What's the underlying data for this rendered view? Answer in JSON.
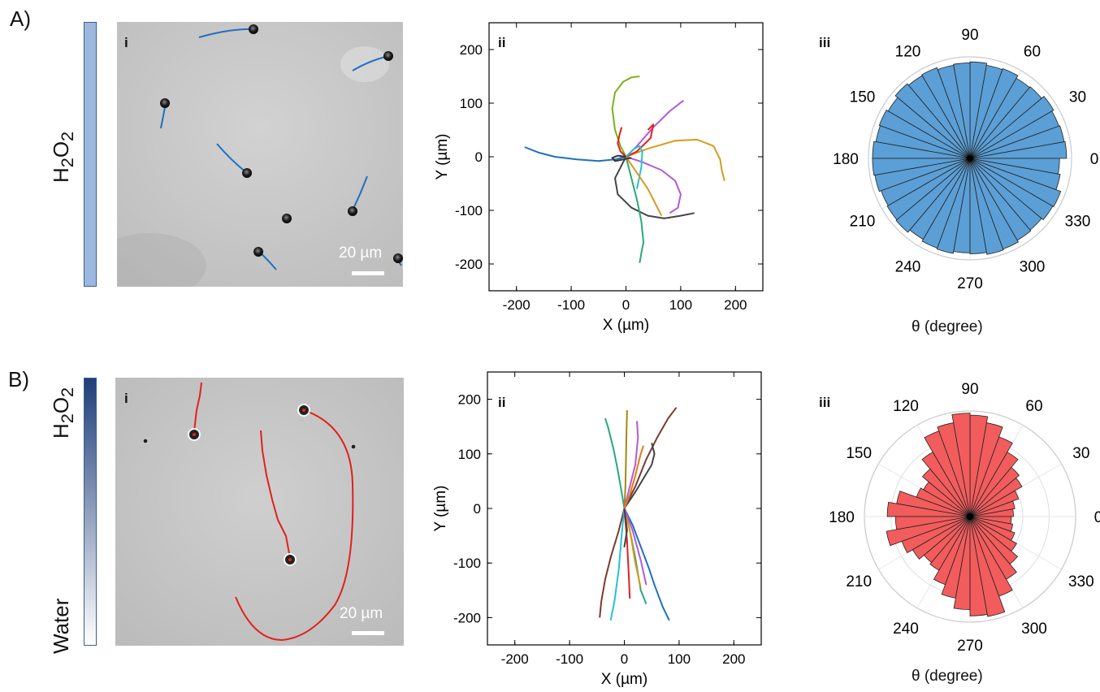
{
  "row_a": {
    "label": "A)",
    "side_label_html": "H<sub>2</sub>O<sub>2</sub>",
    "micro_tag": "i",
    "scale_text": "20 µm",
    "traj_tag": "ii",
    "polar_tag": "iii",
    "polar_xlabel": "θ (degree)",
    "colors": {
      "bar_fill": "#9db8de",
      "polar_fill": "#5b9fd6",
      "track": "#1f6fc0"
    }
  },
  "row_b": {
    "label": "B)",
    "side_label_top_html": "H<sub>2</sub>O<sub>2</sub>",
    "side_label_bottom": "Water",
    "micro_tag": "i",
    "scale_text": "20 µm",
    "traj_tag": "ii",
    "polar_tag": "iii",
    "polar_xlabel": "θ (degree)",
    "colors": {
      "bar_top": "#1f3f7a",
      "bar_bottom": "#ffffff",
      "polar_fill": "#f25c5c",
      "track": "#e3201b"
    }
  },
  "chart_data": [
    {
      "type": "line",
      "panel": "A-ii",
      "title": "",
      "xlabel": "X (µm)",
      "ylabel": "Y (µm)",
      "xlim": [
        -250,
        250
      ],
      "ylim": [
        -250,
        250
      ],
      "x_ticks": [
        -200,
        -100,
        0,
        100,
        200
      ],
      "y_ticks": [
        -200,
        -100,
        0,
        100,
        200
      ],
      "grid": false,
      "series": [
        {
          "color": "#1f6fc0",
          "x": [
            0,
            -20,
            -50,
            -90,
            -130,
            -160,
            -185
          ],
          "y": [
            0,
            -5,
            -8,
            -5,
            0,
            8,
            18
          ]
        },
        {
          "color": "#7ab317",
          "x": [
            0,
            -10,
            -20,
            -25,
            -20,
            -5,
            10,
            25
          ],
          "y": [
            0,
            20,
            50,
            90,
            120,
            140,
            148,
            150
          ]
        },
        {
          "color": "#b25bd6",
          "x": [
            0,
            20,
            50,
            80,
            105
          ],
          "y": [
            0,
            20,
            55,
            85,
            105
          ]
        },
        {
          "color": "#d89a1c",
          "x": [
            0,
            40,
            90,
            130,
            160,
            172,
            175,
            180
          ],
          "y": [
            0,
            15,
            30,
            32,
            20,
            -5,
            -25,
            -45
          ]
        },
        {
          "color": "#b25bd6",
          "x": [
            0,
            30,
            65,
            90,
            100,
            95,
            80
          ],
          "y": [
            0,
            -10,
            -25,
            -45,
            -70,
            -95,
            -105
          ]
        },
        {
          "color": "#444444",
          "x": [
            0,
            -20,
            -15,
            10,
            40,
            70,
            100,
            125
          ],
          "y": [
            0,
            -40,
            -70,
            -95,
            -110,
            -115,
            -110,
            -105
          ]
        },
        {
          "color": "#2aa878",
          "x": [
            0,
            10,
            20,
            28,
            32,
            28,
            25
          ],
          "y": [
            0,
            -40,
            -80,
            -120,
            -160,
            -180,
            -198
          ]
        },
        {
          "color": "#e3201b",
          "x": [
            0,
            20,
            45,
            50,
            40
          ],
          "y": [
            0,
            10,
            35,
            60,
            50
          ]
        },
        {
          "color": "#e3201b",
          "x": [
            0,
            -10,
            -15,
            -12,
            -8
          ],
          "y": [
            0,
            10,
            25,
            40,
            55
          ]
        },
        {
          "color": "#26c0d9",
          "x": [
            0,
            15,
            25,
            30,
            28,
            20
          ],
          "y": [
            0,
            15,
            20,
            10,
            -20,
            -60
          ]
        },
        {
          "color": "#d89a1c",
          "x": [
            0,
            20,
            40,
            55,
            65
          ],
          "y": [
            0,
            -30,
            -60,
            -90,
            -110
          ]
        },
        {
          "color": "#333333",
          "x": [
            0,
            -15,
            -25,
            -20,
            -5,
            10
          ],
          "y": [
            0,
            2,
            -2,
            -8,
            -5,
            -2
          ]
        }
      ]
    },
    {
      "type": "polar-histogram",
      "panel": "A-iii",
      "title": "",
      "xlabel": "θ (degree)",
      "angle_ticks": [
        0,
        30,
        60,
        90,
        120,
        150,
        180,
        210,
        240,
        270,
        300,
        330
      ],
      "bin_width_deg": 10,
      "radius_scale": [
        0,
        1
      ],
      "values": [
        0.97,
        0.96,
        0.95,
        0.97,
        0.94,
        0.93,
        0.96,
        0.95,
        0.97,
        0.96,
        0.95,
        0.97,
        0.96,
        0.98,
        0.95,
        0.97,
        0.96,
        0.98,
        0.98,
        0.97,
        0.95,
        0.96,
        0.97,
        0.94,
        0.96,
        0.97,
        0.95,
        0.96,
        0.98,
        0.97,
        0.95,
        0.94,
        0.96,
        0.97,
        0.92,
        0.9
      ]
    },
    {
      "type": "line",
      "panel": "B-ii",
      "title": "",
      "xlabel": "X (µm)",
      "ylabel": "Y (µm)",
      "xlim": [
        -250,
        250
      ],
      "ylim": [
        -250,
        250
      ],
      "x_ticks": [
        -200,
        -100,
        0,
        100,
        200
      ],
      "y_ticks": [
        -200,
        -100,
        0,
        100,
        200
      ],
      "grid": false,
      "series": [
        {
          "color": "#7b3a2e",
          "x": [
            0,
            20,
            40,
            60,
            80,
            95
          ],
          "y": [
            0,
            40,
            90,
            130,
            165,
            185
          ]
        },
        {
          "color": "#7b3a2e",
          "x": [
            0,
            -10,
            -25,
            -35,
            -42,
            -45
          ],
          "y": [
            0,
            -40,
            -90,
            -130,
            -170,
            -200
          ]
        },
        {
          "color": "#2aa878",
          "x": [
            0,
            -5,
            -12,
            -20,
            -30,
            -35
          ],
          "y": [
            0,
            30,
            70,
            110,
            150,
            165
          ]
        },
        {
          "color": "#a08a12",
          "x": [
            0,
            2,
            3,
            4,
            5
          ],
          "y": [
            0,
            40,
            90,
            140,
            180
          ]
        },
        {
          "color": "#444444",
          "x": [
            0,
            20,
            35,
            50,
            55,
            50
          ],
          "y": [
            0,
            30,
            55,
            80,
            100,
            120
          ]
        },
        {
          "color": "#b25bd6",
          "x": [
            0,
            10,
            20,
            25,
            23
          ],
          "y": [
            0,
            40,
            80,
            130,
            160
          ]
        },
        {
          "color": "#e87a12",
          "x": [
            0,
            10,
            20,
            30,
            35
          ],
          "y": [
            0,
            25,
            60,
            100,
            115
          ]
        },
        {
          "color": "#1f6fc0",
          "x": [
            0,
            15,
            30,
            45,
            55,
            70,
            82
          ],
          "y": [
            0,
            -30,
            -70,
            -110,
            -140,
            -180,
            -205
          ]
        },
        {
          "color": "#26c0d9",
          "x": [
            0,
            -5,
            -10,
            -18,
            -25
          ],
          "y": [
            0,
            -50,
            -110,
            -170,
            -205
          ]
        },
        {
          "color": "#2aa878",
          "x": [
            0,
            10,
            20,
            30,
            40
          ],
          "y": [
            0,
            -40,
            -90,
            -150,
            -175
          ]
        },
        {
          "color": "#e3201b",
          "x": [
            0,
            5,
            8,
            10
          ],
          "y": [
            0,
            -60,
            -120,
            -165
          ]
        },
        {
          "color": "#d89a1c",
          "x": [
            0,
            10,
            20,
            30
          ],
          "y": [
            0,
            -40,
            -100,
            -145
          ]
        },
        {
          "color": "#b25bd6",
          "x": [
            0,
            15,
            30,
            40
          ],
          "y": [
            0,
            -40,
            -95,
            -140
          ]
        },
        {
          "color": "#444444",
          "x": [
            0,
            5,
            0,
            2
          ],
          "y": [
            0,
            -40,
            -70,
            -60
          ]
        }
      ]
    },
    {
      "type": "polar-histogram",
      "panel": "B-iii",
      "title": "",
      "xlabel": "θ (degree)",
      "angle_ticks": [
        0,
        30,
        60,
        90,
        120,
        150,
        180,
        210,
        240,
        270,
        300,
        330
      ],
      "bin_width_deg": 10,
      "radius_scale": [
        0,
        1
      ],
      "values": [
        0.42,
        0.44,
        0.5,
        0.58,
        0.62,
        0.72,
        0.82,
        0.92,
        0.98,
        1.0,
        0.92,
        0.88,
        0.72,
        0.6,
        0.52,
        0.55,
        0.72,
        0.8,
        0.72,
        0.82,
        0.7,
        0.64,
        0.58,
        0.6,
        0.7,
        0.8,
        0.9,
        0.96,
        0.98,
        0.82,
        0.7,
        0.6,
        0.52,
        0.46,
        0.42,
        0.4
      ]
    }
  ]
}
